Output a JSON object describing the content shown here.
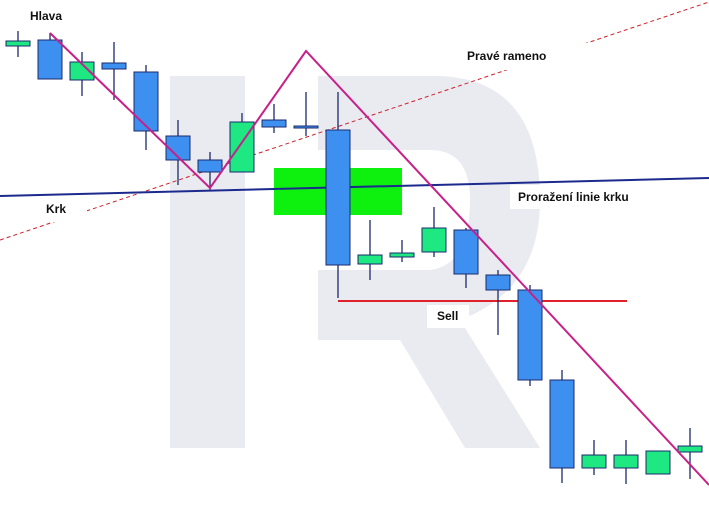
{
  "chart_data": {
    "type": "candlestick",
    "annotations": [
      "Hlava",
      "Pravé rameno",
      "Krk",
      "Proražení linie krku",
      "Sell"
    ],
    "open": [
      485,
      491,
      451,
      468,
      459,
      395,
      371,
      359,
      411,
      405,
      401,
      267,
      274,
      279,
      301,
      256,
      241,
      151,
      63,
      63,
      57,
      79
    ],
    "high": [
      500,
      498,
      479,
      489,
      466,
      411,
      379,
      418,
      427,
      439,
      439,
      311,
      291,
      324,
      303,
      261,
      246,
      161,
      91,
      91,
      80,
      103
    ],
    "low": [
      474,
      452,
      435,
      431,
      381,
      346,
      341,
      359,
      398,
      395,
      233,
      251,
      269,
      274,
      243,
      196,
      145,
      48,
      56,
      47,
      59,
      52
    ],
    "close": [
      490,
      452,
      469,
      462,
      400,
      371,
      359,
      409,
      404,
      403,
      266,
      276,
      278,
      303,
      257,
      241,
      151,
      63,
      76,
      76,
      80,
      85
    ],
    "up_color": "#1de882",
    "down_color": "#3d90ef",
    "wick_color": "#1c2a6e",
    "ylim": [
      0,
      531
    ]
  }
}
